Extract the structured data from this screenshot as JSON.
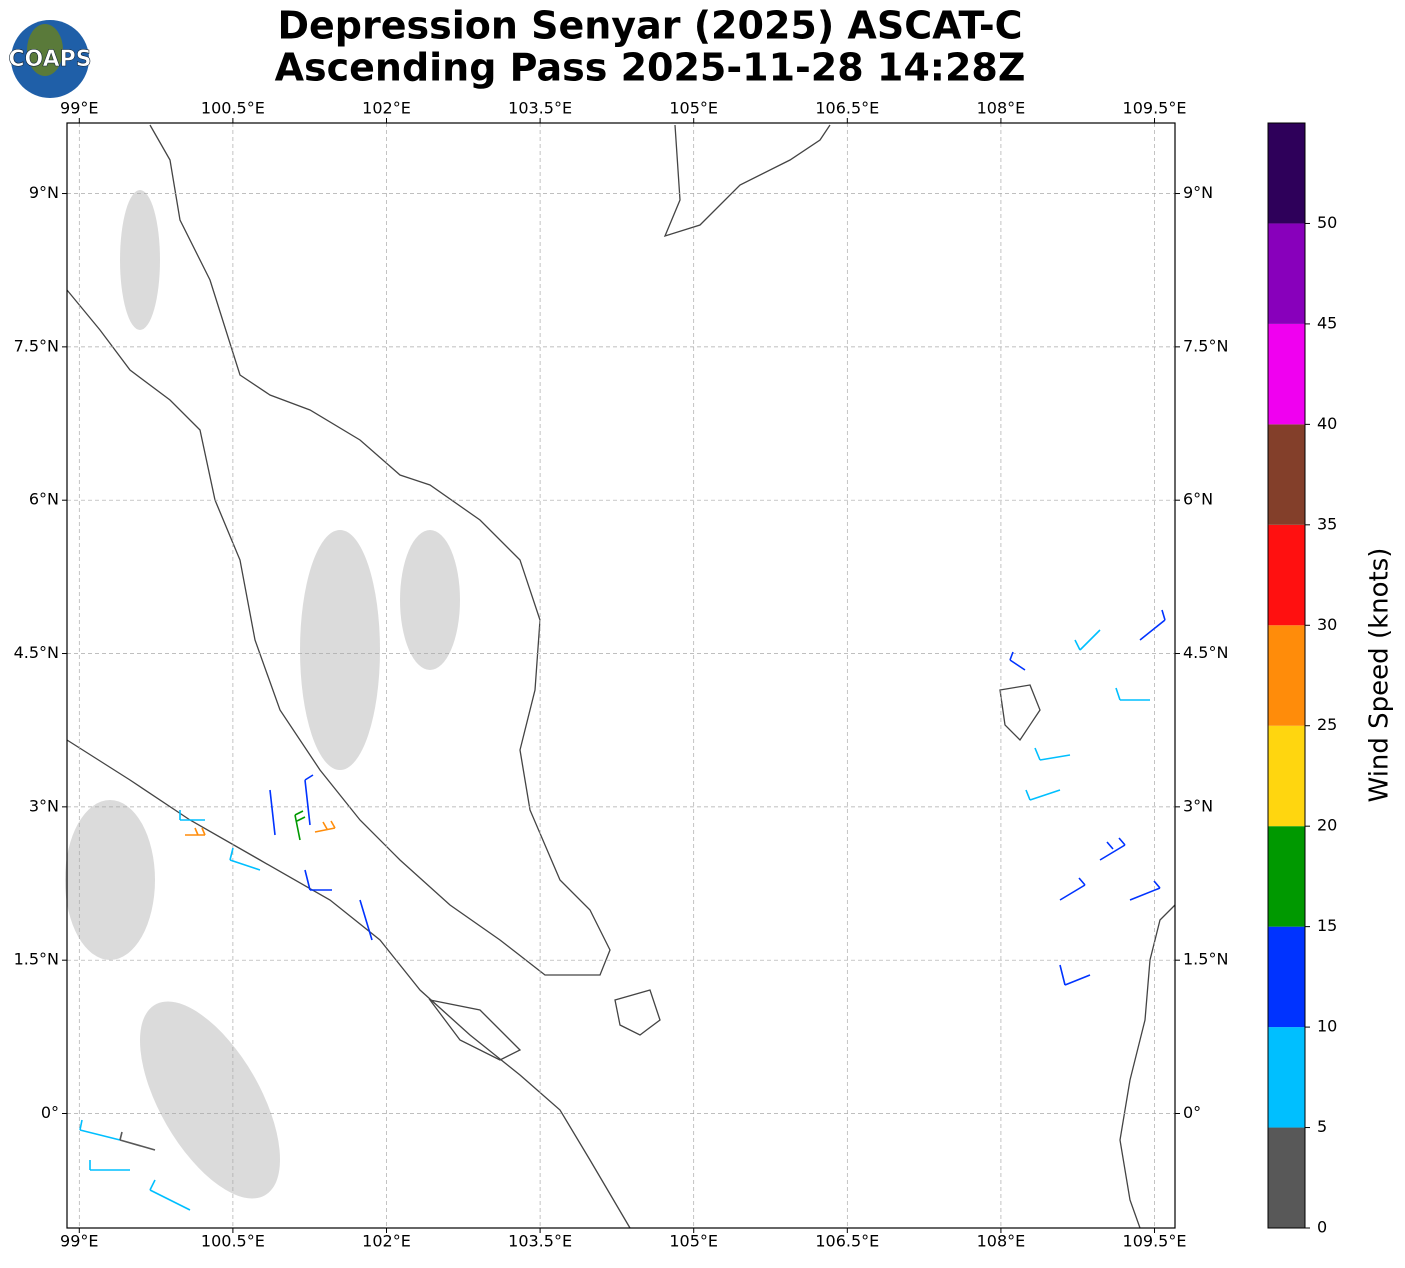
{
  "logo": "COAPS",
  "title": [
    "Depression Senyar (2025) ASCAT-C",
    "Ascending Pass 2025-11-28 14:28Z"
  ],
  "map": {
    "xlim": [
      98.88,
      109.7
    ],
    "ylim": [
      -1.12,
      9.69
    ],
    "grid": true,
    "xticks": [
      {
        "value": 99,
        "label": "99°E"
      },
      {
        "value": 100.5,
        "label": "100.5°E"
      },
      {
        "value": 102,
        "label": "102°E"
      },
      {
        "value": 103.5,
        "label": "103.5°E"
      },
      {
        "value": 105,
        "label": "105°E"
      },
      {
        "value": 106.5,
        "label": "106.5°E"
      },
      {
        "value": 108,
        "label": "108°E"
      },
      {
        "value": 109.5,
        "label": "109.5°E"
      }
    ],
    "yticks": [
      {
        "value": 0,
        "label": "0°"
      },
      {
        "value": 1.5,
        "label": "1.5°N"
      },
      {
        "value": 3,
        "label": "3°N"
      },
      {
        "value": 4.5,
        "label": "4.5°N"
      },
      {
        "value": 6,
        "label": "6°N"
      },
      {
        "value": 7.5,
        "label": "7.5°N"
      },
      {
        "value": 9,
        "label": "9°N"
      }
    ]
  },
  "colorbar": {
    "label": "Wind Speed (knots)",
    "bounds": [
      0,
      5,
      10,
      15,
      20,
      25,
      30,
      35,
      40,
      45,
      50,
      55
    ],
    "colors": [
      "#585858",
      "#00bfff",
      "#0033ff",
      "#009900",
      "#ffd60f",
      "#ff8c0a",
      "#ff1010",
      "#833f2a",
      "#f000f0",
      "#8800bb",
      "#2e005a"
    ],
    "ticks": [
      0,
      5,
      10,
      15,
      20,
      25,
      30,
      35,
      40,
      45,
      50
    ]
  }
}
